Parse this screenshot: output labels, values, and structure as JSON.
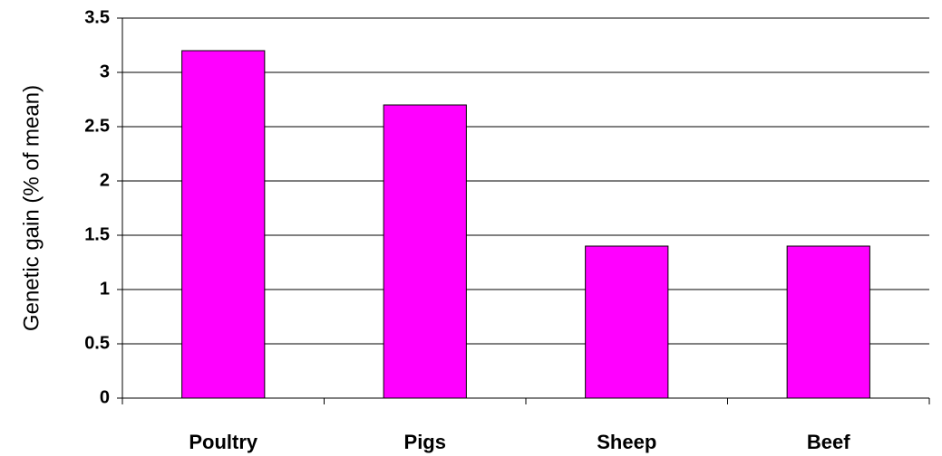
{
  "chart_data": {
    "type": "bar",
    "y_label": "Genetic gain (% of mean)",
    "categories": [
      "Poultry",
      "Pigs",
      "Sheep",
      "Beef"
    ],
    "values": [
      3.2,
      2.7,
      1.4,
      1.4
    ],
    "color": "#ff00ff",
    "ylim": [
      0,
      3.5
    ],
    "yticks": [
      0,
      0.5,
      1,
      1.5,
      2,
      2.5,
      3,
      3.5
    ],
    "grid": true
  }
}
